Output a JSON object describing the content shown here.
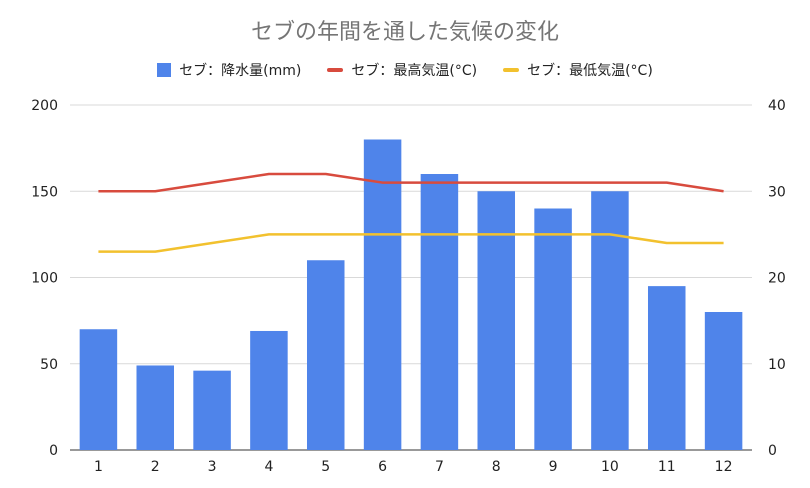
{
  "chart_data": {
    "type": "bar",
    "title": "セブの年間を通した気候の変化",
    "categories": [
      "1",
      "2",
      "3",
      "4",
      "5",
      "6",
      "7",
      "8",
      "9",
      "10",
      "11",
      "12"
    ],
    "series": [
      {
        "name": "セブ：降水量(mm)",
        "type": "bar",
        "axis": "left",
        "color": "#4f84ea",
        "values": [
          70,
          49,
          46,
          69,
          110,
          180,
          160,
          150,
          140,
          150,
          95,
          80
        ]
      },
      {
        "name": "セブ：最高気温(°C)",
        "type": "line",
        "axis": "right",
        "color": "#d84b3e",
        "values": [
          30,
          30,
          31,
          32,
          32,
          31,
          31,
          31,
          31,
          31,
          31,
          30
        ]
      },
      {
        "name": "セブ：最低気温(°C)",
        "type": "line",
        "axis": "right",
        "color": "#f2c12e",
        "values": [
          23,
          23,
          24,
          25,
          25,
          25,
          25,
          25,
          25,
          25,
          24,
          24
        ]
      }
    ],
    "y_left": {
      "min": 0,
      "max": 200,
      "ticks": [
        "0",
        "50",
        "100",
        "150",
        "200"
      ]
    },
    "y_right": {
      "min": 0,
      "max": 40,
      "ticks": [
        "0",
        "10",
        "20",
        "30",
        "40"
      ]
    },
    "grid": true,
    "legend_position": "top"
  }
}
